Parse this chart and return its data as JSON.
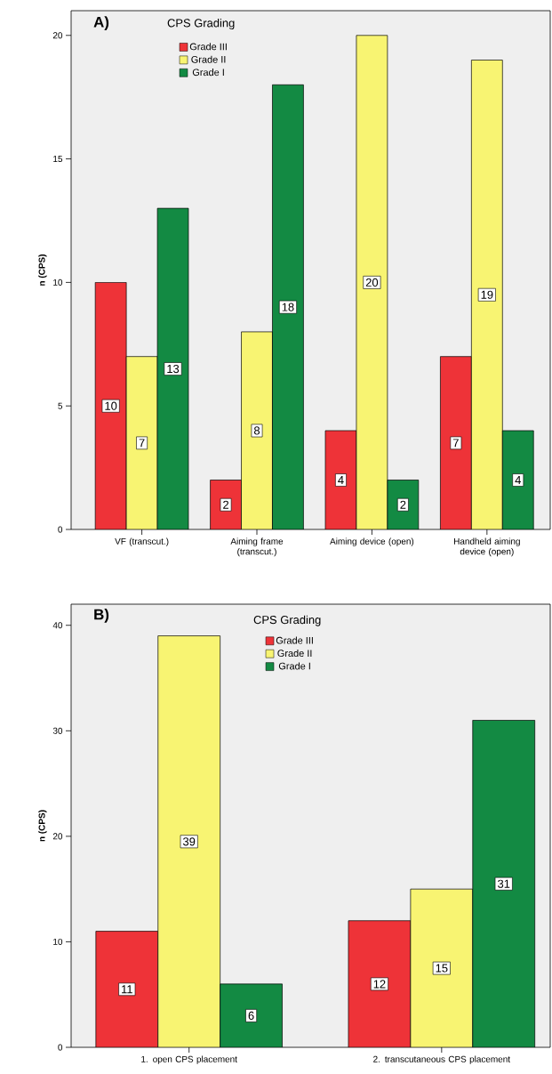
{
  "chart_data": [
    {
      "type": "bar",
      "title": "A)",
      "ylabel": "n (CPS)",
      "legend_title": "CPS Grading",
      "legend": "top left",
      "data_labels": true,
      "categories": [
        "VF (transcut.)",
        "Aiming frame (transcut.)",
        "Aiming device (open)",
        "Handheld aiming device (open)"
      ],
      "series": [
        {
          "name": "Grade III",
          "color": "#ee3338",
          "values": [
            10,
            2,
            4,
            7
          ]
        },
        {
          "name": "Grade II",
          "color": "#f8f472",
          "values": [
            7,
            8,
            20,
            19
          ]
        },
        {
          "name": "Grade I",
          "color": "#138a43",
          "values": [
            13,
            18,
            2,
            4
          ]
        }
      ],
      "ylim": [
        0,
        21
      ],
      "yticks": [
        0,
        5,
        10,
        15,
        20
      ]
    },
    {
      "type": "bar",
      "title": "B)",
      "ylabel": "n (CPS)",
      "legend_title": "CPS Grading",
      "legend": "top",
      "data_labels": true,
      "categories": [
        "1. open CPS placement",
        "2. transcutaneous CPS placement"
      ],
      "series": [
        {
          "name": "Grade III",
          "color": "#ee3338",
          "values": [
            11,
            12
          ]
        },
        {
          "name": "Grade II",
          "color": "#f8f472",
          "values": [
            39,
            15
          ]
        },
        {
          "name": "Grade I",
          "color": "#138a43",
          "values": [
            6,
            31
          ]
        }
      ],
      "ylim": [
        0,
        42
      ],
      "yticks": [
        0,
        10,
        20,
        30,
        40
      ]
    }
  ]
}
